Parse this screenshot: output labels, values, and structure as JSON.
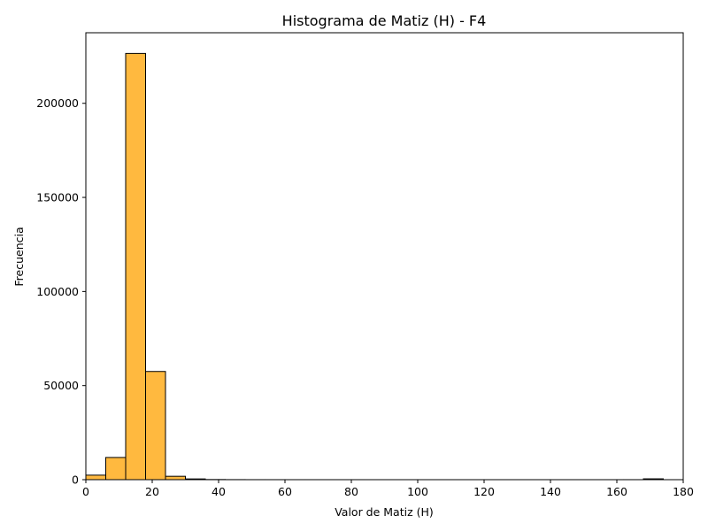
{
  "chart_data": {
    "type": "bar",
    "title": "Histograma de Matiz (H) - F4",
    "xlabel": "Valor de Matiz (H)",
    "ylabel": "Frecuencia",
    "xlim": [
      0,
      180
    ],
    "ylim": [
      0,
      237500
    ],
    "xticks": [
      0,
      20,
      40,
      60,
      80,
      100,
      120,
      140,
      160,
      180
    ],
    "yticks": [
      0,
      50000,
      100000,
      150000,
      200000
    ],
    "bin_width": 6,
    "bins": [
      {
        "x0": 0,
        "x1": 6,
        "value": 2400
      },
      {
        "x0": 6,
        "x1": 12,
        "value": 11800
      },
      {
        "x0": 12,
        "x1": 18,
        "value": 226500
      },
      {
        "x0": 18,
        "x1": 24,
        "value": 57500
      },
      {
        "x0": 24,
        "x1": 30,
        "value": 1800
      },
      {
        "x0": 30,
        "x1": 36,
        "value": 400
      },
      {
        "x0": 36,
        "x1": 42,
        "value": 80
      },
      {
        "x0": 42,
        "x1": 48,
        "value": 30
      },
      {
        "x0": 48,
        "x1": 54,
        "value": 10
      },
      {
        "x0": 54,
        "x1": 60,
        "value": 5
      },
      {
        "x0": 60,
        "x1": 66,
        "value": 3
      },
      {
        "x0": 66,
        "x1": 72,
        "value": 2
      },
      {
        "x0": 72,
        "x1": 78,
        "value": 1
      },
      {
        "x0": 78,
        "x1": 84,
        "value": 1
      },
      {
        "x0": 84,
        "x1": 90,
        "value": 0
      },
      {
        "x0": 90,
        "x1": 96,
        "value": 0
      },
      {
        "x0": 96,
        "x1": 102,
        "value": 0
      },
      {
        "x0": 102,
        "x1": 108,
        "value": 0
      },
      {
        "x0": 108,
        "x1": 114,
        "value": 0
      },
      {
        "x0": 114,
        "x1": 120,
        "value": 0
      },
      {
        "x0": 120,
        "x1": 126,
        "value": 0
      },
      {
        "x0": 126,
        "x1": 132,
        "value": 0
      },
      {
        "x0": 132,
        "x1": 138,
        "value": 0
      },
      {
        "x0": 138,
        "x1": 144,
        "value": 0
      },
      {
        "x0": 144,
        "x1": 150,
        "value": 0
      },
      {
        "x0": 150,
        "x1": 156,
        "value": 0
      },
      {
        "x0": 156,
        "x1": 162,
        "value": 2
      },
      {
        "x0": 162,
        "x1": 168,
        "value": 10
      },
      {
        "x0": 168,
        "x1": 174,
        "value": 450
      }
    ],
    "bar_color": "#ffb93f",
    "edge_color": "#000000",
    "grid": false,
    "legend": "none"
  }
}
